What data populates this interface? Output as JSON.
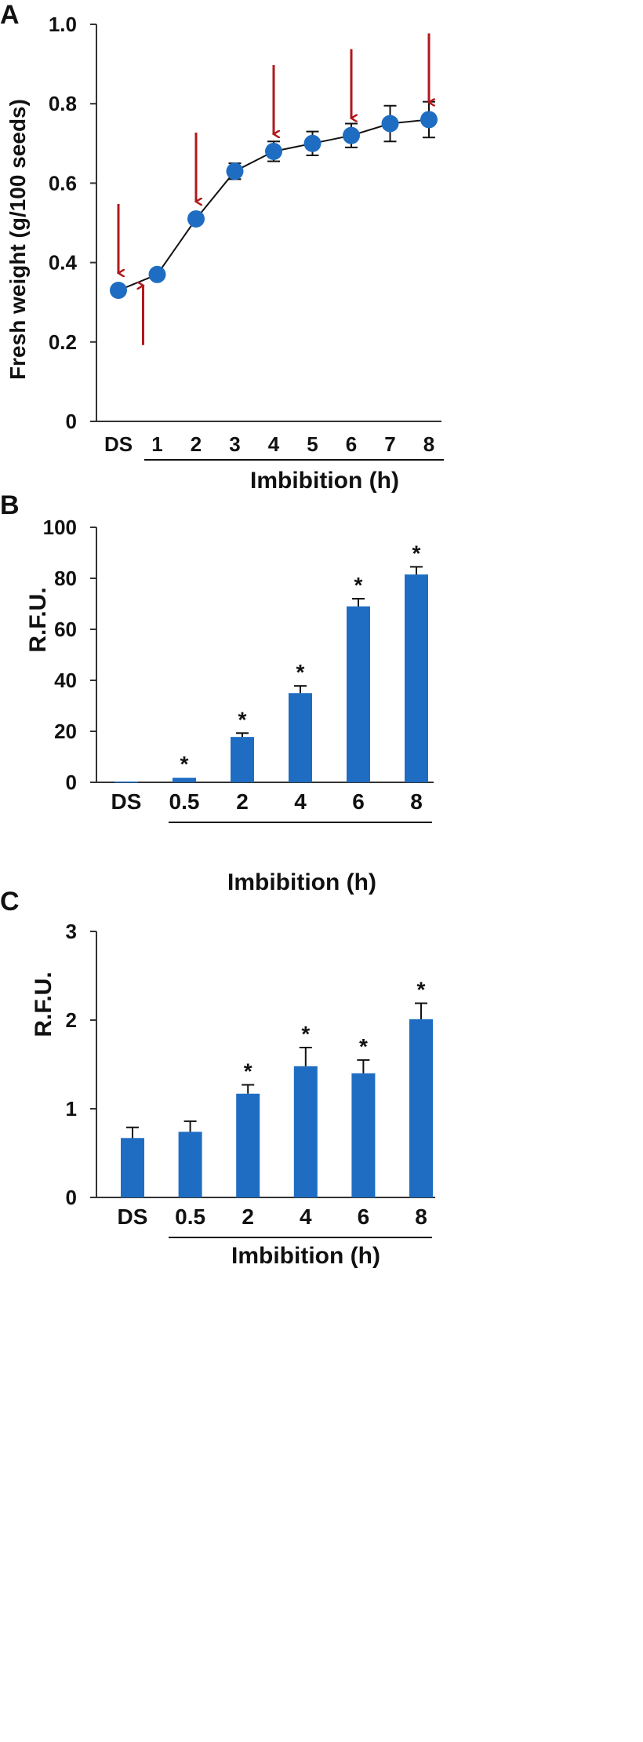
{
  "colors": {
    "series": "#1f6dc2",
    "arrow": "#b0191b",
    "axis": "#333333"
  },
  "chart_data": [
    {
      "panel": "A",
      "type": "line",
      "categories": [
        "DS",
        "1",
        "2",
        "3",
        "4",
        "5",
        "6",
        "7",
        "8"
      ],
      "values": [
        0.33,
        0.37,
        0.51,
        0.63,
        0.68,
        0.7,
        0.72,
        0.75,
        0.76
      ],
      "errors": [
        0,
        0,
        0,
        0.02,
        0.025,
        0.03,
        0.03,
        0.045,
        0.045
      ],
      "ylim": [
        0,
        1.0
      ],
      "yticks": [
        "0",
        "0.2",
        "0.4",
        "0.6",
        "0.8",
        "1.0"
      ],
      "ylabel": "Fresh weight (g/100 seeds)",
      "xlabel": "Imbibition (h)",
      "grid": false,
      "annotations": [
        {
          "type": "arrow-down",
          "category": "DS"
        },
        {
          "type": "arrow-up",
          "category": "1"
        },
        {
          "type": "arrow-down",
          "category": "2"
        },
        {
          "type": "arrow-down",
          "category": "4"
        },
        {
          "type": "arrow-down",
          "category": "6"
        },
        {
          "type": "arrow-down",
          "category": "8"
        }
      ]
    },
    {
      "panel": "B",
      "type": "bar",
      "categories": [
        "DS",
        "0.5",
        "2",
        "4",
        "6",
        "8"
      ],
      "values": [
        0.3,
        1.8,
        17.8,
        35,
        69,
        81.5
      ],
      "errors": [
        0,
        0,
        1.5,
        2.8,
        3,
        3
      ],
      "significance": [
        "",
        "*",
        "*",
        "*",
        "*",
        "*"
      ],
      "ylim": [
        0,
        100
      ],
      "yticks": [
        "0",
        "20",
        "40",
        "60",
        "80",
        "100"
      ],
      "ylabel": "R.F.U.",
      "xlabel": "Imbibition (h)",
      "grid": false
    },
    {
      "panel": "C",
      "type": "bar",
      "categories": [
        "DS",
        "0.5",
        "2",
        "4",
        "6",
        "8"
      ],
      "values": [
        0.67,
        0.74,
        1.17,
        1.48,
        1.4,
        2.01
      ],
      "errors": [
        0.12,
        0.12,
        0.1,
        0.21,
        0.15,
        0.18
      ],
      "significance": [
        "",
        "",
        "*",
        "*",
        "*",
        "*"
      ],
      "ylim": [
        0,
        3
      ],
      "yticks": [
        "0",
        "1",
        "2",
        "3"
      ],
      "ylabel": "R.F.U.",
      "xlabel": "Imbibition (h)",
      "grid": false
    }
  ]
}
